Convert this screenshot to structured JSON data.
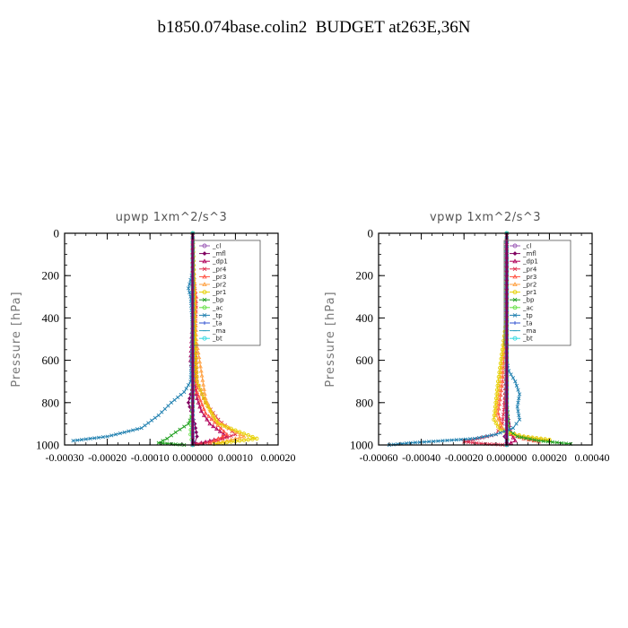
{
  "page": {
    "title": "b1850.074base.colin2  BUDGET at263E,36N"
  },
  "legend_labels": [
    "_cl",
    "_mfl",
    "_dp1",
    "_pr4",
    "_pr3",
    "_pr2",
    "_pr1",
    "_bp",
    "_ac",
    "_tp",
    "_ta",
    "_ma",
    "_bt"
  ],
  "chart_data": [
    {
      "type": "line",
      "title": "upwp   1xm^2/s^3",
      "ylabel": "Pressure [hPa]",
      "xlim": [
        -0.0003,
        0.0002
      ],
      "ylim": [
        1000,
        0
      ],
      "xticks": [
        -0.0003,
        -0.0002,
        -0.0001,
        0,
        0.0001,
        0.0002
      ],
      "xtick_labels": [
        "-0.00030",
        "-0.00020",
        "-0.00010",
        "0.000000",
        "0.00010",
        "0.00020"
      ],
      "yticks": [
        0,
        200,
        400,
        600,
        800,
        1000
      ],
      "ytick_labels": [
        "0",
        "200",
        "400",
        "600",
        "800",
        "1000"
      ],
      "series": [
        {
          "name": "_cl",
          "color": "#9b59b6",
          "x": [
            0,
            0,
            0,
            0,
            0,
            0,
            0,
            0,
            0,
            0,
            0,
            0,
            0
          ],
          "y": [
            0,
            80,
            160,
            240,
            320,
            400,
            480,
            560,
            640,
            720,
            800,
            880,
            990
          ]
        },
        {
          "name": "_mfl",
          "color": "#800060",
          "x": [
            0,
            0,
            0,
            2e-06,
            4e-06,
            5e-06,
            6e-06,
            3e-06,
            -1e-05,
            5e-06,
            1e-05,
            5e-06
          ],
          "y": [
            0,
            100,
            200,
            300,
            400,
            500,
            600,
            700,
            800,
            900,
            960,
            990
          ]
        },
        {
          "name": "_dp1",
          "color": "#b0005a",
          "x": [
            0,
            0,
            0,
            -5e-06,
            3e-06,
            1e-05,
            2e-05,
            4e-05,
            8e-05,
            2e-05,
            0
          ],
          "y": [
            0,
            200,
            400,
            600,
            700,
            780,
            840,
            900,
            960,
            990,
            1000
          ]
        },
        {
          "name": "_pr4",
          "color": "#e03050",
          "x": [
            0,
            0,
            5e-06,
            8e-06,
            5e-06,
            1e-05,
            3e-05,
            6e-05,
            0.0001,
            5e-05,
            0
          ],
          "y": [
            0,
            180,
            250,
            350,
            500,
            700,
            800,
            880,
            950,
            985,
            1000
          ]
        },
        {
          "name": "_pr3",
          "color": "#ff5040",
          "x": [
            0,
            4e-06,
            8e-06,
            4e-06,
            1e-05,
            3e-05,
            8e-05,
            4e-05
          ],
          "y": [
            0,
            250,
            300,
            500,
            750,
            850,
            950,
            990
          ]
        },
        {
          "name": "_pr2",
          "color": "#ffa040",
          "x": [
            0,
            4e-06,
            6e-06,
            8e-06,
            3e-05,
            5e-05,
            0.00012,
            6e-05
          ],
          "y": [
            0,
            250,
            350,
            500,
            780,
            880,
            960,
            990
          ]
        },
        {
          "name": "_pr1",
          "color": "#e6d000",
          "x": [
            0,
            3e-06,
            3e-06,
            1e-05,
            3e-05,
            6e-05,
            0.00015,
            5e-05
          ],
          "y": [
            0,
            260,
            400,
            700,
            800,
            900,
            970,
            995
          ]
        },
        {
          "name": "_bp",
          "color": "#20a020",
          "x": [
            0,
            0,
            0,
            0,
            -1e-05,
            -4e-05,
            -6e-05,
            -8e-05,
            -2e-05
          ],
          "y": [
            0,
            300,
            600,
            850,
            900,
            940,
            970,
            990,
            1000
          ]
        },
        {
          "name": "_ac",
          "color": "#60e040",
          "x": [
            0,
            0,
            0,
            -5e-06,
            0
          ],
          "y": [
            0,
            400,
            800,
            950,
            1000
          ]
        },
        {
          "name": "_tp",
          "color": "#2080b0",
          "x": [
            0,
            -5e-06,
            -1e-05,
            -5e-06,
            0,
            -5e-06,
            -2e-05,
            -5e-05,
            -8e-05,
            -0.00012,
            -0.0002,
            -0.00028
          ],
          "y": [
            180,
            220,
            260,
            300,
            450,
            700,
            750,
            800,
            860,
            920,
            960,
            980
          ]
        },
        {
          "name": "_ta",
          "color": "#3050d0",
          "x": [
            0,
            0,
            0,
            0,
            0
          ],
          "y": [
            0,
            300,
            600,
            900,
            1000
          ]
        },
        {
          "name": "_ma",
          "color": "#30a0c0",
          "x": [
            0,
            0,
            0,
            0,
            0
          ],
          "y": [
            0,
            300,
            600,
            900,
            1000
          ]
        },
        {
          "name": "_bt",
          "color": "#30d8e0",
          "x": [
            0,
            0,
            0,
            0,
            0
          ],
          "y": [
            0,
            300,
            600,
            900,
            1000
          ]
        }
      ]
    },
    {
      "type": "line",
      "title": "vpwp   1xm^2/s^3",
      "ylabel": "Pressure [hPa]",
      "xlim": [
        -0.0006,
        0.0004
      ],
      "ylim": [
        1000,
        0
      ],
      "xticks": [
        -0.0006,
        -0.0004,
        -0.0002,
        0,
        0.0002,
        0.0004
      ],
      "xtick_labels": [
        "-0.00060",
        "-0.00040",
        "-0.00020",
        "0.000000",
        "0.00020",
        "0.00040"
      ],
      "yticks": [
        0,
        200,
        400,
        600,
        800,
        1000
      ],
      "ytick_labels": [
        "0",
        "200",
        "400",
        "600",
        "800",
        "1000"
      ],
      "series": [
        {
          "name": "_cl",
          "color": "#9b59b6",
          "x": [
            0,
            0,
            0,
            0,
            0,
            0,
            0,
            0,
            0,
            0
          ],
          "y": [
            0,
            100,
            200,
            300,
            400,
            500,
            600,
            700,
            800,
            990
          ]
        },
        {
          "name": "_mfl",
          "color": "#800060",
          "x": [
            0,
            0,
            0,
            0,
            0,
            1e-05,
            -1e-05,
            0
          ],
          "y": [
            0,
            200,
            400,
            600,
            800,
            900,
            960,
            990
          ]
        },
        {
          "name": "_dp1",
          "color": "#b0005a",
          "x": [
            0,
            0,
            0,
            -1e-05,
            2e-05,
            4e-05,
            0
          ],
          "y": [
            0,
            300,
            600,
            800,
            950,
            980,
            1000
          ]
        },
        {
          "name": "_pr4",
          "color": "#e03050",
          "x": [
            0,
            0,
            0,
            -2e-05,
            -5e-05,
            -0.0002,
            -0.0001,
            0
          ],
          "y": [
            0,
            300,
            700,
            900,
            950,
            985,
            995,
            1000
          ]
        },
        {
          "name": "_pr3",
          "color": "#ff5040",
          "x": [
            0,
            0,
            -2e-05,
            -4e-05,
            -2e-05,
            2e-05,
            8e-05,
            0.00015
          ],
          "y": [
            0,
            400,
            700,
            850,
            920,
            950,
            970,
            985
          ]
        },
        {
          "name": "_pr2",
          "color": "#ffa040",
          "x": [
            0,
            0,
            -3e-05,
            -5e-05,
            -2e-05,
            6e-05,
            0.0002
          ],
          "y": [
            0,
            400,
            700,
            860,
            920,
            960,
            980
          ]
        },
        {
          "name": "_pr1",
          "color": "#e6d000",
          "x": [
            0,
            0,
            -4e-05,
            -6e-05,
            -3e-05,
            8e-05,
            0.0002
          ],
          "y": [
            0,
            400,
            700,
            880,
            930,
            960,
            975
          ]
        },
        {
          "name": "_bp",
          "color": "#20a020",
          "x": [
            0,
            0,
            0,
            1e-05,
            5e-05,
            0.00015,
            0.0003
          ],
          "y": [
            0,
            400,
            800,
            930,
            960,
            980,
            995
          ]
        },
        {
          "name": "_ac",
          "color": "#60e040",
          "x": [
            0,
            0,
            0,
            5e-06,
            0
          ],
          "y": [
            0,
            400,
            800,
            950,
            1000
          ]
        },
        {
          "name": "_tp",
          "color": "#2080b0",
          "x": [
            0,
            1e-05,
            4e-05,
            6e-05,
            5e-05,
            6e-05,
            3e-05,
            -5e-05,
            -0.00015,
            -0.0003,
            -0.00045,
            -0.00055
          ],
          "y": [
            600,
            650,
            700,
            760,
            820,
            880,
            920,
            950,
            970,
            980,
            990,
            1000
          ]
        },
        {
          "name": "_ta",
          "color": "#3050d0",
          "x": [
            0,
            0,
            0,
            0,
            0
          ],
          "y": [
            0,
            300,
            600,
            900,
            1000
          ]
        },
        {
          "name": "_ma",
          "color": "#30a0c0",
          "x": [
            0,
            0,
            0,
            0,
            0
          ],
          "y": [
            0,
            300,
            600,
            900,
            1000
          ]
        },
        {
          "name": "_bt",
          "color": "#30d8e0",
          "x": [
            0,
            0,
            0,
            0,
            0
          ],
          "y": [
            0,
            300,
            600,
            900,
            1000
          ]
        }
      ]
    }
  ]
}
